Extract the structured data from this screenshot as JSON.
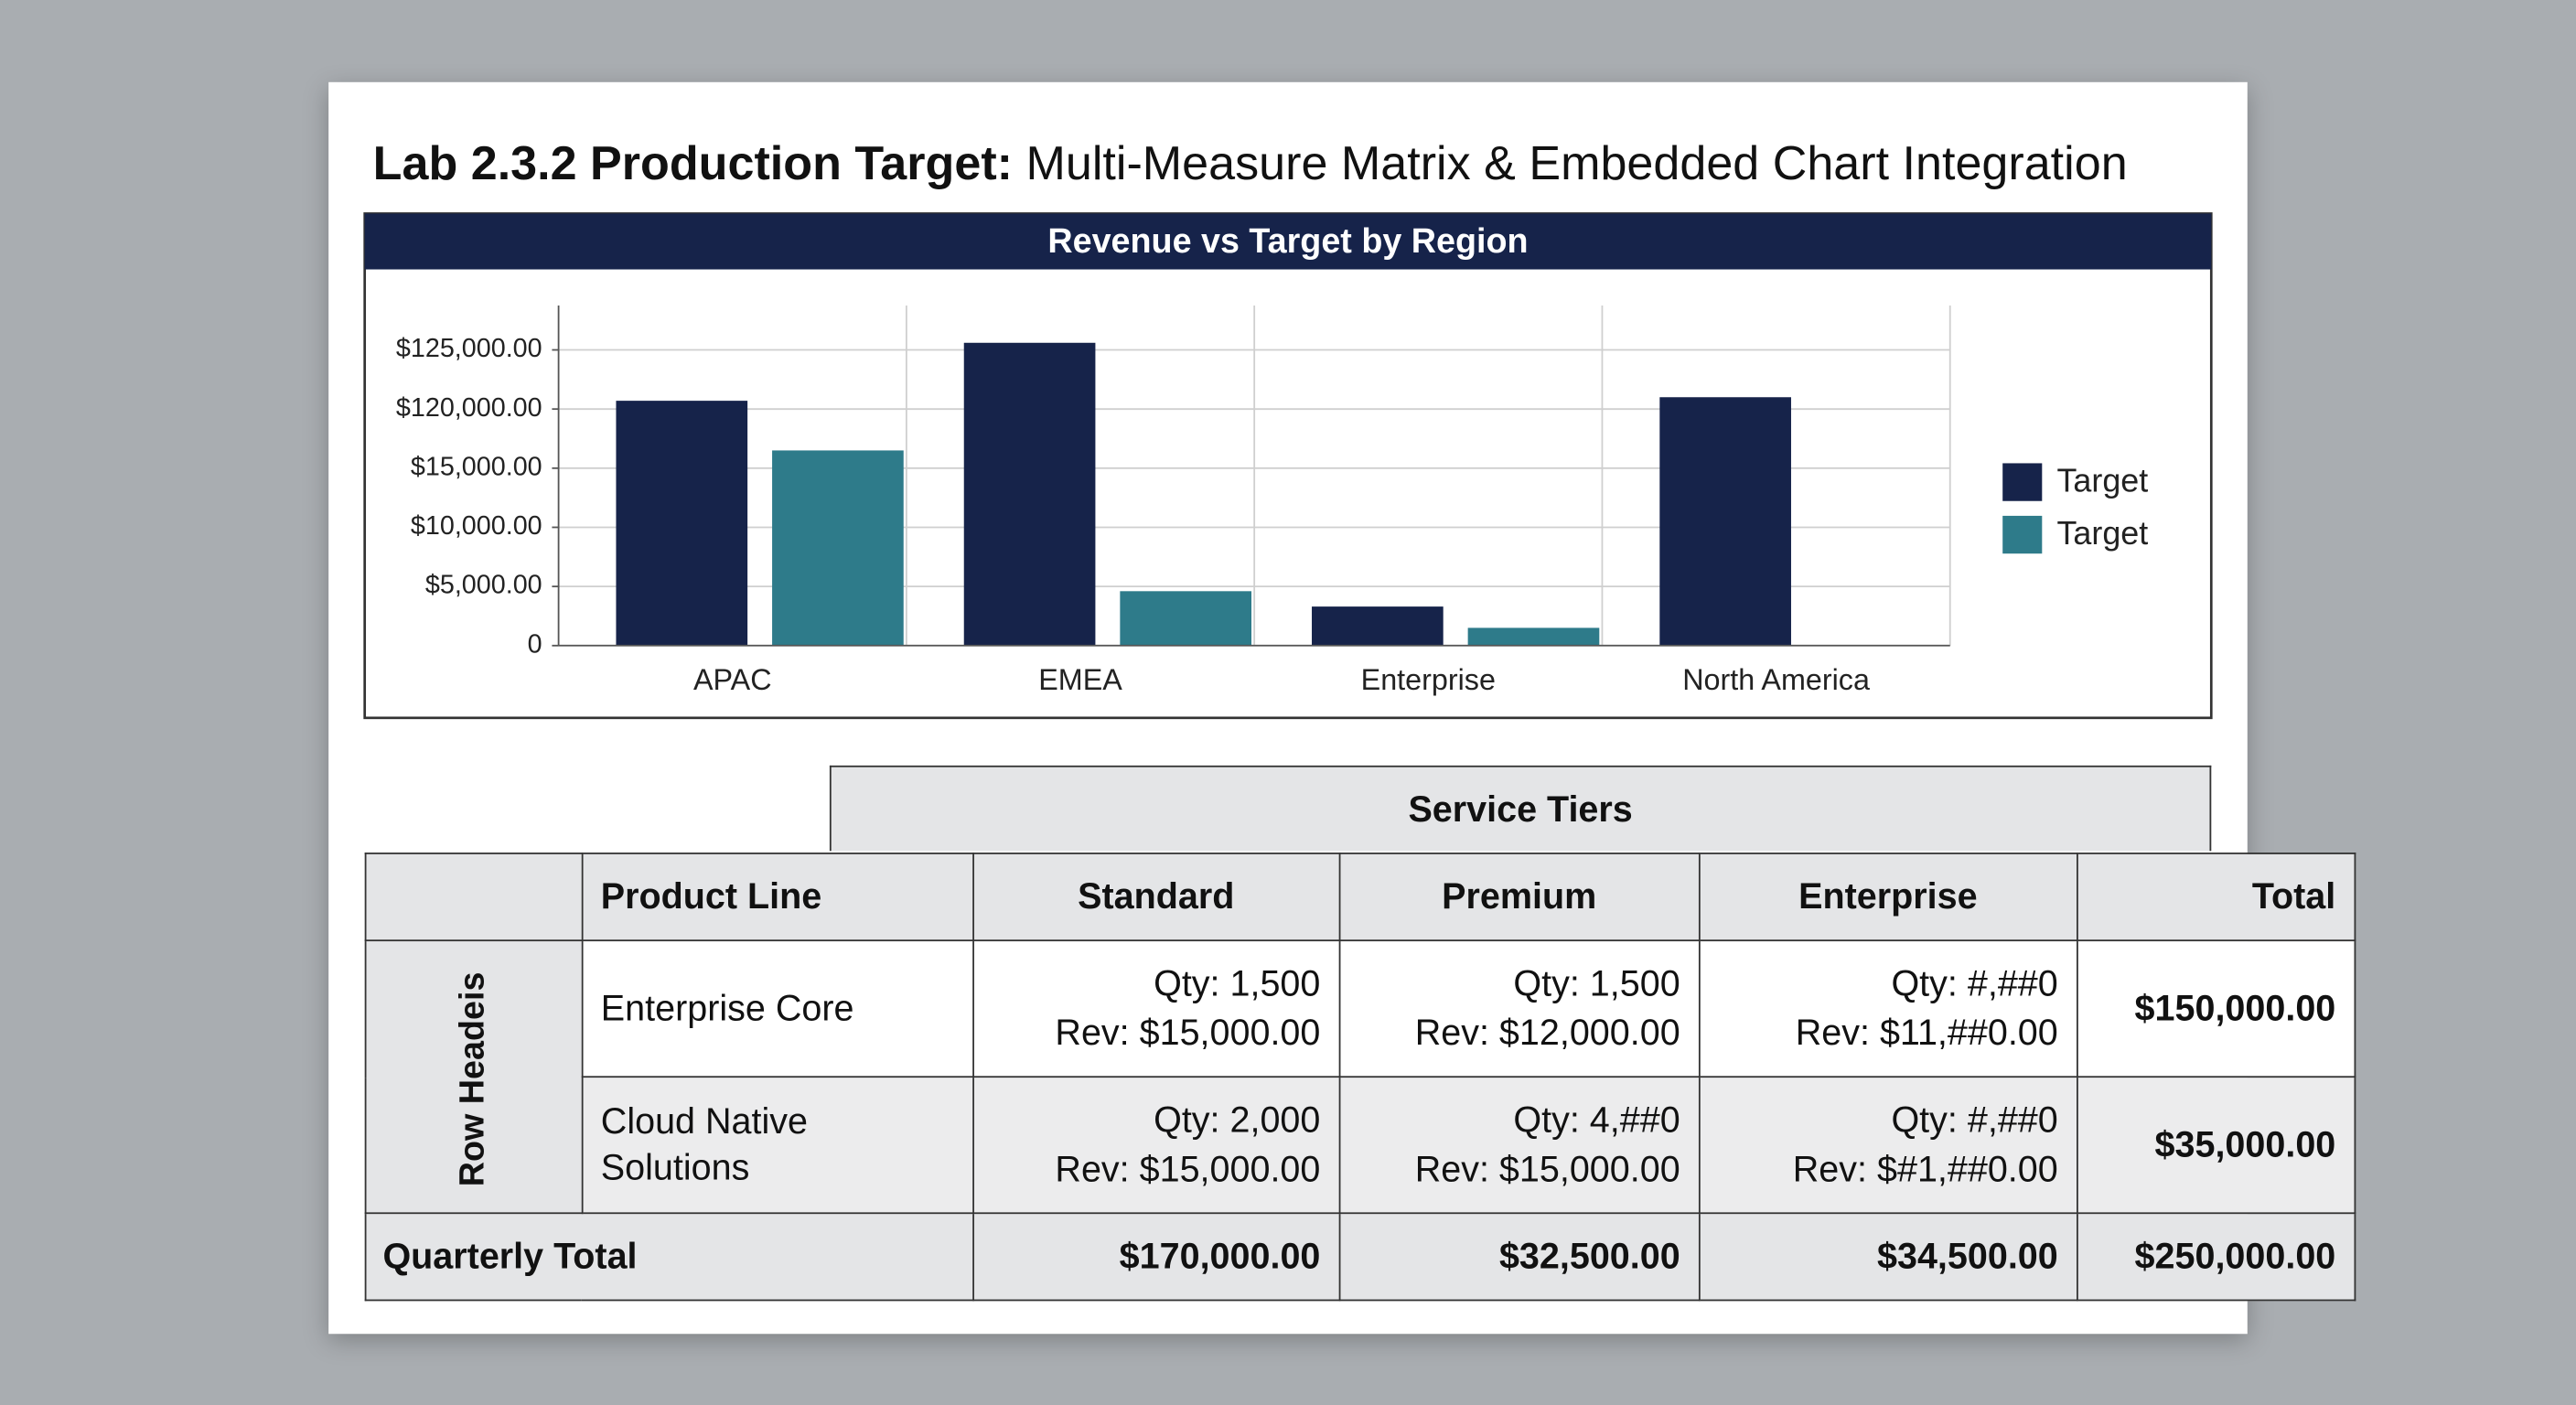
{
  "header": {
    "title_bold": "Lab 2.3.2 Production Target:",
    "title_rest": "Multi-Measure Matrix & Embedded Chart Integration"
  },
  "chart_data": {
    "type": "bar",
    "title": "Revenue vs Target by Region",
    "categories": [
      "APAC",
      "EMEA",
      "Enterprise",
      "North America"
    ],
    "series": [
      {
        "name": "Target",
        "color": "#16234a",
        "values": [
          120700,
          125600,
          3300,
          121000
        ]
      },
      {
        "name": "Target",
        "color": "#2e7b8a",
        "values": [
          46500,
          4600,
          1500,
          null
        ]
      }
    ],
    "ylim": [
      0,
      128750
    ],
    "yticks": [
      0,
      {
        "value": 5000,
        "label": "$5,000.00"
      },
      {
        "value": 10000,
        "label": "$10,000.00"
      },
      {
        "value": 15000,
        "label": "$15,000.00"
      },
      {
        "value": 120000,
        "label": "$120,000.00"
      },
      {
        "value": 125000,
        "label": "$125,000.00"
      }
    ],
    "grid": true,
    "legend": "right"
  },
  "table": {
    "group_header": "Service Tiers",
    "row_header_label": "Row Headeis",
    "columns": [
      "Product Line",
      "Standard",
      "Premium",
      "Enterprise",
      "Total"
    ],
    "rows": [
      {
        "label": "Enterprise Core",
        "cells": [
          [
            "Qty: 1,500",
            "Rev: $15,000.00"
          ],
          [
            "Qty: 1,500",
            "Rev: $12,000.00"
          ],
          [
            "Qty: #,##0",
            "Rev: $11,##0.00"
          ]
        ],
        "total": "$150,000.00"
      },
      {
        "label": "Cloud Native Solutions",
        "cells": [
          [
            "Qty: 2,000",
            "Rev: $15,000.00"
          ],
          [
            "Qty: 4,##0",
            "Rev: $15,000.00"
          ],
          [
            "Qty: #,##0",
            "Rev: $#1,##0.00"
          ]
        ],
        "total": "$35,000.00"
      }
    ],
    "footer": {
      "label": "Quarterly Total",
      "values": [
        "$170,000.00",
        "$32,500.00",
        "$34,500.00",
        "$250,000.00"
      ]
    }
  }
}
